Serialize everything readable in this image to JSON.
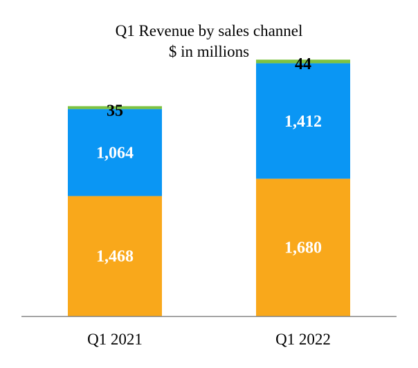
{
  "chart_data": {
    "type": "bar",
    "stacked": true,
    "title": "Q1 Revenue by sales channel",
    "subtitle": "$ in millions",
    "categories": [
      "Q1 2021",
      "Q1 2022"
    ],
    "series": [
      {
        "values": [
          1468,
          1680
        ],
        "color": "#F9A81B",
        "label_color": "#ffffff"
      },
      {
        "values": [
          1064,
          1412
        ],
        "color": "#0A96F4",
        "label_color": "#ffffff"
      },
      {
        "values": [
          35,
          44
        ],
        "color": "#7DC242",
        "label_color": "#000000"
      }
    ],
    "value_labels": [
      [
        "1,468",
        "1,064",
        "35"
      ],
      [
        "1,680",
        "1,412",
        "44"
      ]
    ],
    "ylim": [
      0,
      3400
    ],
    "grid": false,
    "legend": "none"
  }
}
